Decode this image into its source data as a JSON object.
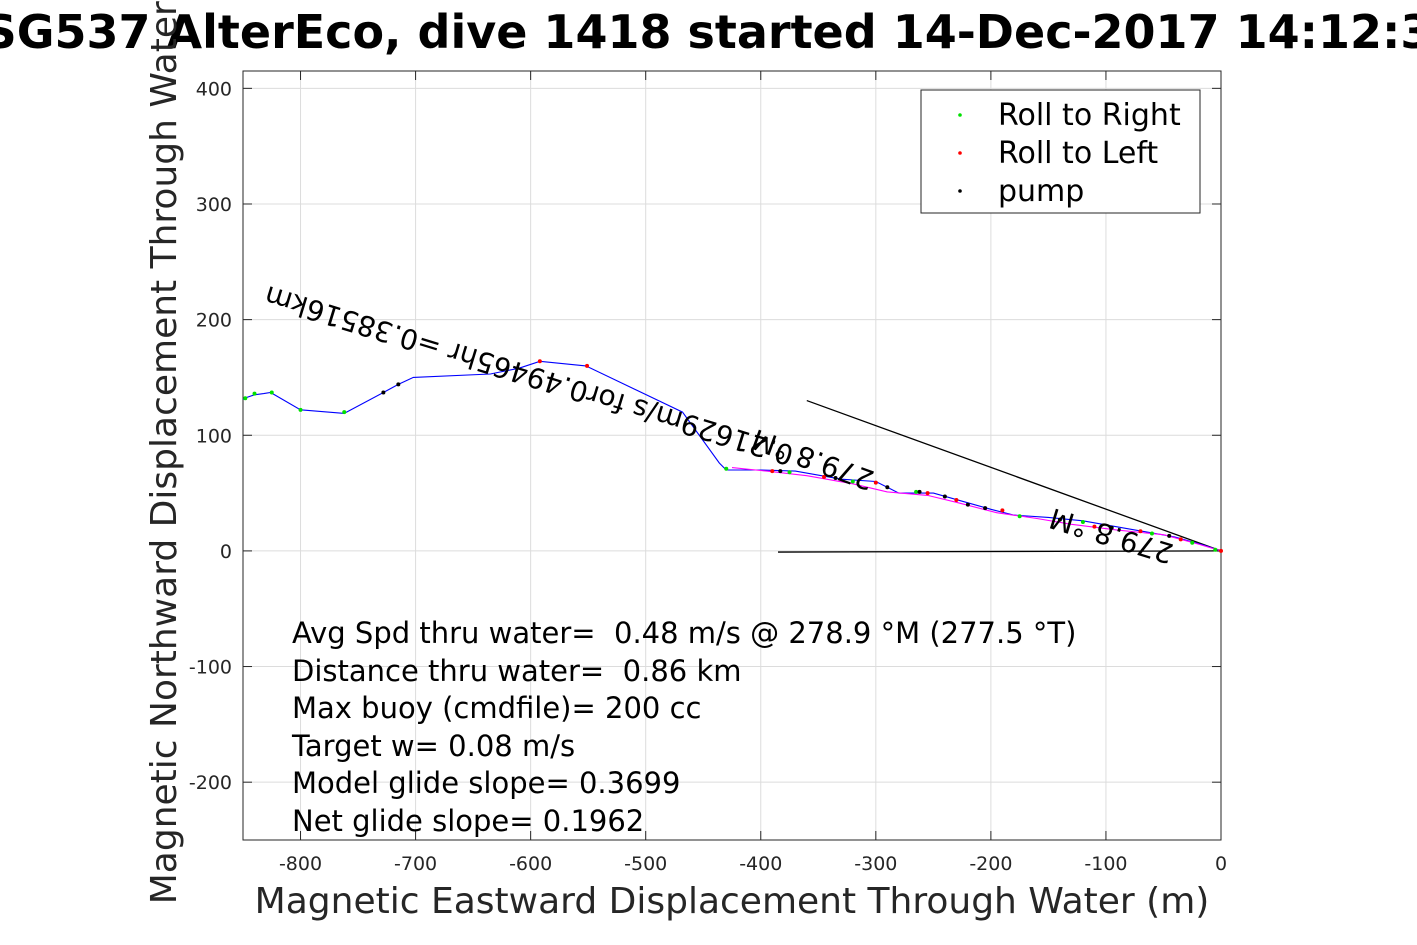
{
  "chart_data": {
    "type": "line",
    "title": "SG537 AlterEco, dive 1418 started 14-Dec-2017 14:12:3",
    "xlabel": "Magnetic Eastward Displacement Through Water (m)",
    "ylabel": "Magnetic Northward Displacement Through Water (",
    "xlim": [
      -850,
      0
    ],
    "ylim": [
      -250,
      415
    ],
    "xticks": [
      -800,
      -700,
      -600,
      -500,
      -400,
      -300,
      -200,
      -100,
      0
    ],
    "yticks": [
      -200,
      -100,
      0,
      100,
      200,
      300,
      400
    ],
    "grid": true,
    "legend_position": "top-right",
    "legend": [
      {
        "label": "Roll to Right",
        "color": "#00e000"
      },
      {
        "label": "Roll to Left",
        "color": "#ff0000"
      },
      {
        "label": "pump",
        "color": "#000000"
      }
    ],
    "series": [
      {
        "color": "#0000ff",
        "x": [
          0,
          -15,
          -40,
          -80,
          -120,
          -150,
          -180,
          -200,
          -225,
          -250,
          -280,
          -300,
          -330,
          -370,
          -400,
          -430,
          -436,
          -468,
          -552,
          -592,
          -610,
          -635,
          -702,
          -715,
          -728,
          -760,
          -763,
          -800,
          -826,
          -832,
          -840,
          -846,
          -850
        ],
        "y": [
          0,
          5,
          12,
          19,
          26,
          29,
          31,
          36,
          43,
          50,
          50,
          60,
          62,
          69,
          70,
          70,
          76,
          120,
          160,
          164,
          158,
          153,
          150,
          144,
          137,
          120,
          119,
          122,
          137,
          136,
          135,
          133,
          131
        ]
      },
      {
        "color": "#ff00ff",
        "x": [
          0,
          -20,
          -50,
          -90,
          -130,
          -160,
          -195,
          -230,
          -255,
          -290,
          -320,
          -360,
          -395,
          -425
        ],
        "y": [
          0,
          6,
          14,
          18,
          23,
          28,
          33,
          42,
          48,
          51,
          58,
          65,
          69,
          72
        ]
      }
    ],
    "markers": {
      "roll_right": {
        "x": [
          -5,
          -25,
          -60,
          -120,
          -175,
          -265,
          -320,
          -375,
          -430,
          -762,
          -800,
          -825,
          -840,
          -848
        ],
        "y": [
          1,
          7,
          15,
          25,
          30,
          51,
          60,
          68,
          71,
          120,
          122,
          137,
          136,
          132
        ]
      },
      "roll_left": {
        "x": [
          0,
          -35,
          -70,
          -110,
          -190,
          -230,
          -255,
          -300,
          -345,
          -390,
          -551,
          -592
        ],
        "y": [
          0,
          10,
          17,
          21,
          35,
          44,
          50,
          59,
          64,
          69,
          160,
          164
        ]
      },
      "pump": {
        "x": [
          -45,
          -95,
          -140,
          -205,
          -220,
          -240,
          -262,
          -290,
          -335,
          -383,
          -715,
          -728
        ],
        "y": [
          13,
          20,
          27,
          37,
          40,
          47,
          51,
          55,
          63,
          69,
          144,
          137
        ]
      }
    },
    "reference_lines": [
      {
        "x": [
          0,
          -360
        ],
        "y": [
          0,
          130
        ]
      },
      {
        "x": [
          0,
          -385
        ],
        "y": [
          0,
          -1
        ]
      }
    ],
    "rotated_labels": [
      {
        "text": "0.21629m/s for0.49465hr =0.38516km",
        "x": -370,
        "y": 90,
        "angle": 197
      },
      {
        "text": "279.8 °M",
        "x": -300,
        "y": 68,
        "angle": 200
      },
      {
        "text": "279.8 °M",
        "x": -40,
        "y": 5,
        "angle": 197
      }
    ],
    "annotations": [
      "Avg Spd thru water=  0.48 m/s @ 278.9 °M (277.5 °T)",
      "Distance thru water=  0.86 km",
      "Max buoy (cmdfile)= 200 cc",
      "Target w= 0.08 m/s",
      "Model glide slope= 0.3699",
      "Net glide slope= 0.1962"
    ]
  }
}
